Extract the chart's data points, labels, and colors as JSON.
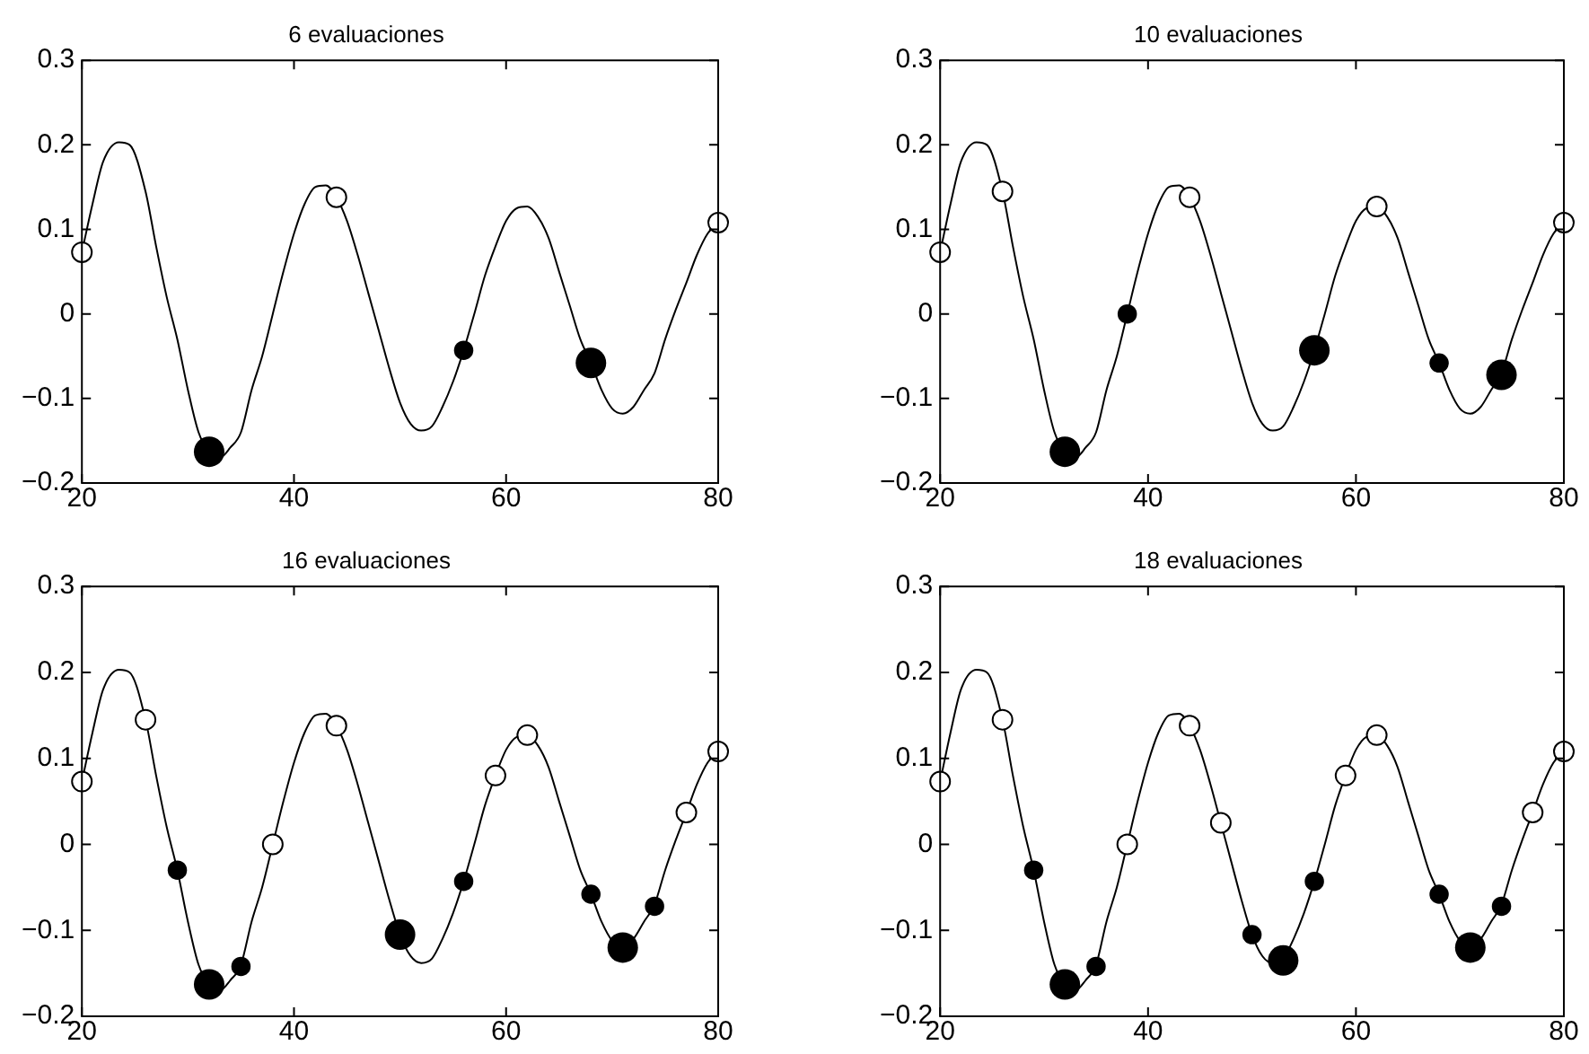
{
  "chart_data": [
    {
      "type": "line",
      "title": "6 evaluaciones",
      "xlim": [
        20,
        80
      ],
      "xticks": [
        20,
        40,
        60,
        80
      ],
      "ylim": [
        -0.2,
        0.3
      ],
      "yticks": [
        -0.2,
        -0.1,
        0,
        0.1,
        0.2,
        0.3
      ],
      "series": [
        {
          "type": "line",
          "color": "#000000",
          "marker": "none",
          "x": [
            20,
            21,
            22,
            23.5,
            24.5,
            26,
            27,
            28,
            29,
            30,
            31,
            32,
            33,
            34,
            35,
            36,
            37,
            38,
            39,
            40,
            41,
            42,
            43,
            44,
            45,
            46,
            47,
            48,
            49,
            50,
            51,
            52,
            53,
            54,
            55,
            56,
            57,
            58,
            59,
            60,
            61,
            62,
            63,
            64,
            65,
            66,
            67,
            68,
            69,
            70,
            71,
            72,
            73,
            74,
            75,
            76,
            77,
            78,
            79,
            80
          ],
          "values": [
            0.073,
            0.13,
            0.18,
            0.203,
            0.2,
            0.145,
            0.08,
            0.02,
            -0.03,
            -0.09,
            -0.14,
            -0.163,
            -0.17,
            -0.158,
            -0.14,
            -0.09,
            -0.05,
            0.0,
            0.05,
            0.095,
            0.13,
            0.15,
            0.152,
            0.138,
            0.11,
            0.07,
            0.025,
            -0.02,
            -0.065,
            -0.105,
            -0.13,
            -0.138,
            -0.133,
            -0.11,
            -0.08,
            -0.043,
            0.0,
            0.045,
            0.08,
            0.11,
            0.125,
            0.127,
            0.115,
            0.09,
            0.05,
            0.01,
            -0.03,
            -0.058,
            -0.09,
            -0.112,
            -0.118,
            -0.11,
            -0.09,
            -0.07,
            -0.03,
            0.005,
            0.037,
            0.07,
            0.095,
            0.108
          ]
        },
        {
          "type": "scatter",
          "color": "#ffffff",
          "marker": "circle",
          "x": [
            20,
            44,
            80
          ],
          "values": [
            0.073,
            0.138,
            0.108
          ]
        },
        {
          "type": "bubble",
          "color": "#000000",
          "marker": "circle",
          "x": [
            32,
            56,
            68
          ],
          "values": [
            -0.163,
            -0.043,
            -0.058
          ],
          "sizes": [
            1,
            0.4,
            1
          ]
        }
      ]
    },
    {
      "type": "line",
      "title": "10 evaluaciones",
      "xlim": [
        20,
        80
      ],
      "xticks": [
        20,
        40,
        60,
        80
      ],
      "ylim": [
        -0.2,
        0.3
      ],
      "yticks": [
        -0.2,
        -0.1,
        0,
        0.1,
        0.2,
        0.3
      ],
      "series": [
        {
          "type": "line",
          "color": "#000000",
          "marker": "none",
          "x": [
            20,
            21,
            22,
            23.5,
            24.5,
            26,
            27,
            28,
            29,
            30,
            31,
            32,
            33,
            34,
            35,
            36,
            37,
            38,
            39,
            40,
            41,
            42,
            43,
            44,
            45,
            46,
            47,
            48,
            49,
            50,
            51,
            52,
            53,
            54,
            55,
            56,
            57,
            58,
            59,
            60,
            61,
            62,
            63,
            64,
            65,
            66,
            67,
            68,
            69,
            70,
            71,
            72,
            73,
            74,
            75,
            76,
            77,
            78,
            79,
            80
          ],
          "values": [
            0.073,
            0.13,
            0.18,
            0.203,
            0.2,
            0.145,
            0.08,
            0.02,
            -0.03,
            -0.09,
            -0.14,
            -0.163,
            -0.17,
            -0.158,
            -0.14,
            -0.09,
            -0.05,
            0.0,
            0.05,
            0.095,
            0.13,
            0.15,
            0.152,
            0.138,
            0.11,
            0.07,
            0.025,
            -0.02,
            -0.065,
            -0.105,
            -0.13,
            -0.138,
            -0.133,
            -0.11,
            -0.08,
            -0.043,
            0.0,
            0.045,
            0.08,
            0.11,
            0.125,
            0.127,
            0.115,
            0.09,
            0.05,
            0.01,
            -0.03,
            -0.058,
            -0.09,
            -0.112,
            -0.118,
            -0.11,
            -0.09,
            -0.07,
            -0.03,
            0.005,
            0.037,
            0.07,
            0.095,
            0.108
          ]
        },
        {
          "type": "scatter",
          "color": "#ffffff",
          "marker": "circle",
          "x": [
            20,
            26,
            44,
            62,
            80
          ],
          "values": [
            0.073,
            0.145,
            0.138,
            0.127,
            0.108
          ]
        },
        {
          "type": "bubble",
          "color": "#000000",
          "marker": "circle",
          "x": [
            32,
            38,
            56,
            68,
            74
          ],
          "values": [
            -0.163,
            0.0,
            -0.043,
            -0.058,
            -0.072
          ],
          "sizes": [
            1,
            0.4,
            1,
            0.4,
            1
          ]
        }
      ]
    },
    {
      "type": "line",
      "title": "16 evaluaciones",
      "xlim": [
        20,
        80
      ],
      "xticks": [
        20,
        40,
        60,
        80
      ],
      "ylim": [
        -0.2,
        0.3
      ],
      "yticks": [
        -0.2,
        -0.1,
        0,
        0.1,
        0.2,
        0.3
      ],
      "series": [
        {
          "type": "line",
          "color": "#000000",
          "marker": "none",
          "x": [
            20,
            21,
            22,
            23.5,
            24.5,
            26,
            27,
            28,
            29,
            30,
            31,
            32,
            33,
            34,
            35,
            36,
            37,
            38,
            39,
            40,
            41,
            42,
            43,
            44,
            45,
            46,
            47,
            48,
            49,
            50,
            51,
            52,
            53,
            54,
            55,
            56,
            57,
            58,
            59,
            60,
            61,
            62,
            63,
            64,
            65,
            66,
            67,
            68,
            69,
            70,
            71,
            72,
            73,
            74,
            75,
            76,
            77,
            78,
            79,
            80
          ],
          "values": [
            0.073,
            0.13,
            0.18,
            0.203,
            0.2,
            0.145,
            0.08,
            0.02,
            -0.03,
            -0.09,
            -0.14,
            -0.163,
            -0.17,
            -0.158,
            -0.14,
            -0.09,
            -0.05,
            0.0,
            0.05,
            0.095,
            0.13,
            0.15,
            0.152,
            0.138,
            0.11,
            0.07,
            0.025,
            -0.02,
            -0.065,
            -0.105,
            -0.13,
            -0.138,
            -0.133,
            -0.11,
            -0.08,
            -0.043,
            0.0,
            0.045,
            0.08,
            0.11,
            0.125,
            0.127,
            0.115,
            0.09,
            0.05,
            0.01,
            -0.03,
            -0.058,
            -0.09,
            -0.112,
            -0.118,
            -0.11,
            -0.09,
            -0.07,
            -0.03,
            0.005,
            0.037,
            0.07,
            0.095,
            0.108
          ]
        },
        {
          "type": "scatter",
          "color": "#ffffff",
          "marker": "circle",
          "x": [
            20,
            26,
            38,
            44,
            59,
            62,
            77,
            80
          ],
          "values": [
            0.073,
            0.145,
            0.0,
            0.138,
            0.08,
            0.127,
            0.037,
            0.108
          ]
        },
        {
          "type": "bubble",
          "color": "#000000",
          "marker": "circle",
          "x": [
            29,
            32,
            35,
            50,
            56,
            68,
            71,
            74
          ],
          "values": [
            -0.03,
            -0.163,
            -0.142,
            -0.105,
            -0.043,
            -0.058,
            -0.12,
            -0.072
          ],
          "sizes": [
            0.4,
            1,
            0.4,
            1,
            0.4,
            0.4,
            1,
            0.4
          ]
        }
      ]
    },
    {
      "type": "line",
      "title": "18 evaluaciones",
      "xlim": [
        20,
        80
      ],
      "xticks": [
        20,
        40,
        60,
        80
      ],
      "ylim": [
        -0.2,
        0.3
      ],
      "yticks": [
        -0.2,
        -0.1,
        0,
        0.1,
        0.2,
        0.3
      ],
      "series": [
        {
          "type": "line",
          "color": "#000000",
          "marker": "none",
          "x": [
            20,
            21,
            22,
            23.5,
            24.5,
            26,
            27,
            28,
            29,
            30,
            31,
            32,
            33,
            34,
            35,
            36,
            37,
            38,
            39,
            40,
            41,
            42,
            43,
            44,
            45,
            46,
            47,
            48,
            49,
            50,
            51,
            52,
            53,
            54,
            55,
            56,
            57,
            58,
            59,
            60,
            61,
            62,
            63,
            64,
            65,
            66,
            67,
            68,
            69,
            70,
            71,
            72,
            73,
            74,
            75,
            76,
            77,
            78,
            79,
            80
          ],
          "values": [
            0.073,
            0.13,
            0.18,
            0.203,
            0.2,
            0.145,
            0.08,
            0.02,
            -0.03,
            -0.09,
            -0.14,
            -0.163,
            -0.17,
            -0.158,
            -0.14,
            -0.09,
            -0.05,
            0.0,
            0.05,
            0.095,
            0.13,
            0.15,
            0.152,
            0.138,
            0.11,
            0.07,
            0.025,
            -0.02,
            -0.065,
            -0.105,
            -0.13,
            -0.138,
            -0.133,
            -0.11,
            -0.08,
            -0.043,
            0.0,
            0.045,
            0.08,
            0.11,
            0.125,
            0.127,
            0.115,
            0.09,
            0.05,
            0.01,
            -0.03,
            -0.058,
            -0.09,
            -0.112,
            -0.118,
            -0.11,
            -0.09,
            -0.07,
            -0.03,
            0.005,
            0.037,
            0.07,
            0.095,
            0.108
          ]
        },
        {
          "type": "scatter",
          "color": "#ffffff",
          "marker": "circle",
          "x": [
            20,
            26,
            38,
            44,
            47,
            59,
            62,
            77,
            80
          ],
          "values": [
            0.073,
            0.145,
            0.0,
            0.138,
            0.025,
            0.08,
            0.127,
            0.037,
            0.108
          ]
        },
        {
          "type": "bubble",
          "color": "#000000",
          "marker": "circle",
          "x": [
            29,
            32,
            35,
            50,
            53,
            56,
            68,
            71,
            74
          ],
          "values": [
            -0.03,
            -0.163,
            -0.142,
            -0.105,
            -0.135,
            -0.043,
            -0.058,
            -0.12,
            -0.072
          ],
          "sizes": [
            0.4,
            1,
            0.4,
            0.4,
            1,
            0.4,
            0.4,
            1,
            0.4
          ]
        }
      ]
    }
  ]
}
